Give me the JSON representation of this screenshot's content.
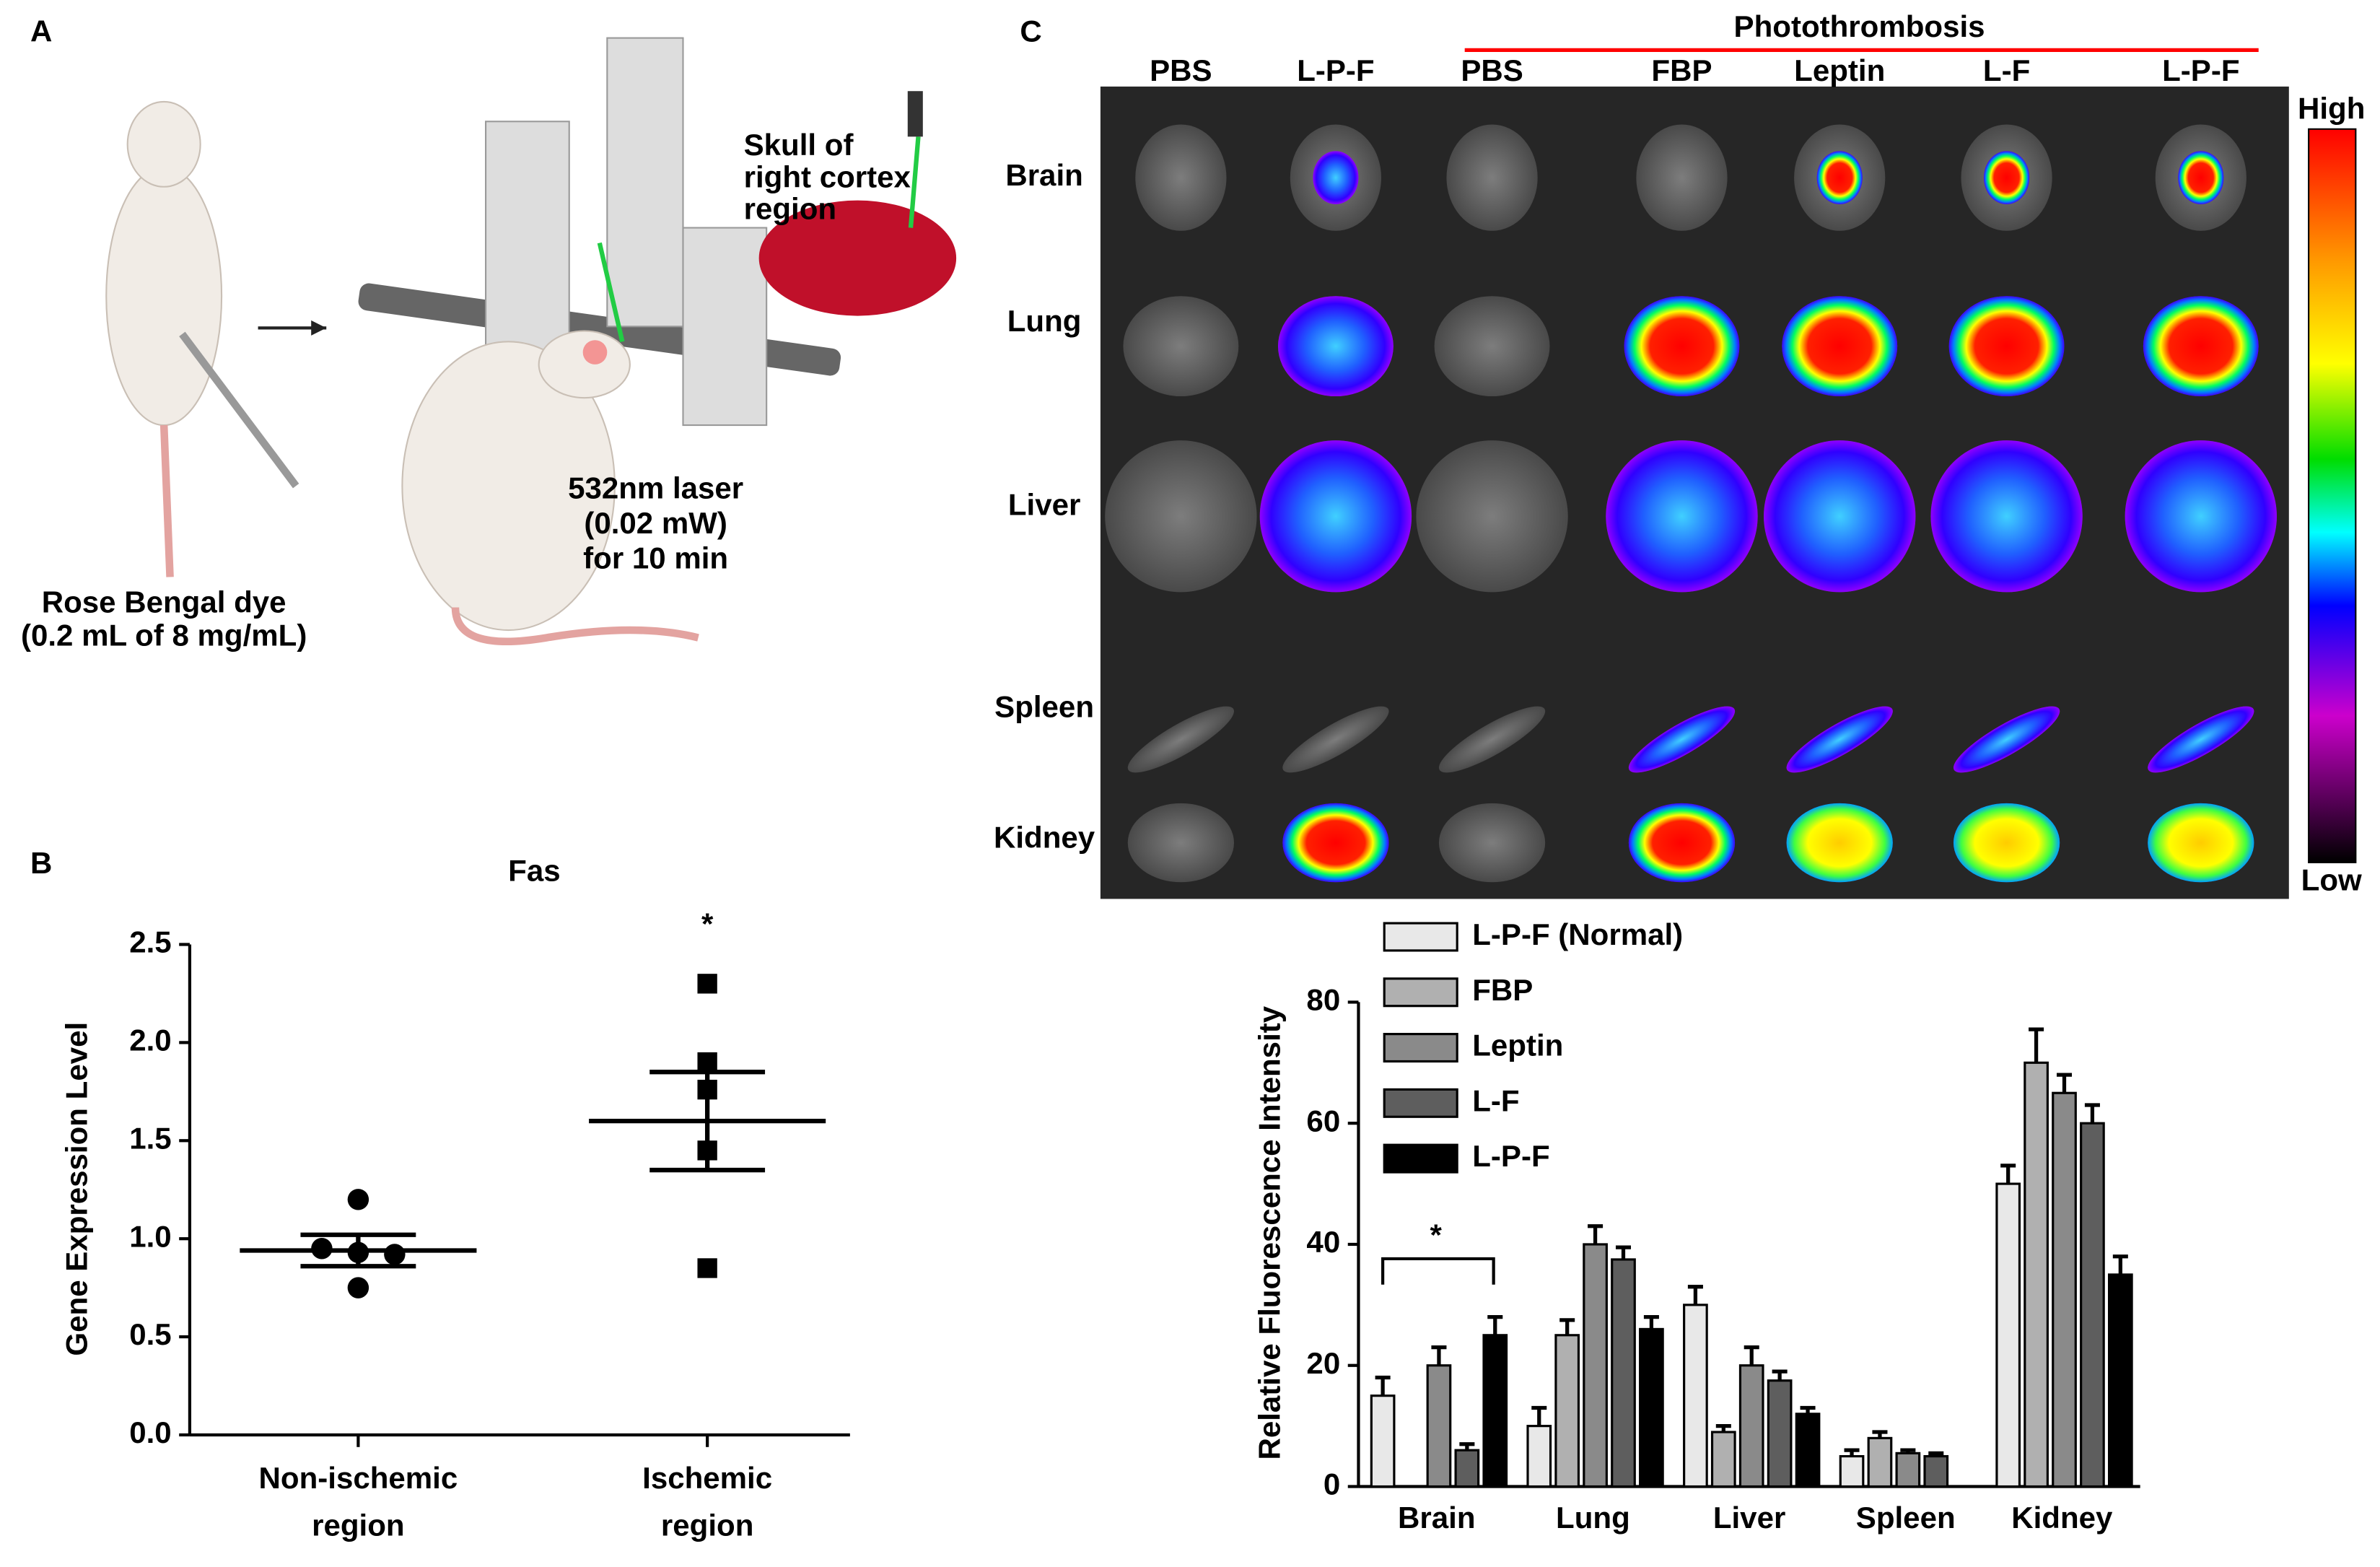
{
  "panel_labels": [
    "A",
    "B",
    "C"
  ],
  "panel_a": {
    "skull_label": [
      "Skull of",
      "right cortex",
      "region"
    ],
    "laser_label": [
      "532nm laser",
      "(0.02 mW)",
      "for 10 min"
    ],
    "dye_label": [
      "Rose Bengal dye",
      "(0.2 mL of 8 mg/mL)"
    ]
  },
  "panel_c_image": {
    "group_label": "Photothrombosis",
    "columns": [
      "PBS",
      "L-P-F",
      "PBS",
      "FBP",
      "Leptin",
      "L-F",
      "L-P-F"
    ],
    "rows": [
      "Brain",
      "Lung",
      "Liver",
      "Spleen",
      "Kidney"
    ],
    "scale_high": "High",
    "scale_low": "Low"
  },
  "chart_data": [
    {
      "type": "scatter",
      "title": "Fas",
      "y_label": "Gene Expression Level",
      "annotation": "*",
      "categories": [
        "Non-ischemic region",
        "Ischemic region"
      ],
      "groups": [
        {
          "marker": "circle",
          "color": "#000000",
          "values": [
            1.2,
            0.95,
            0.93,
            0.92,
            0.75
          ],
          "mean": 0.94,
          "sem": 0.08
        },
        {
          "marker": "square",
          "color": "#000000",
          "values": [
            2.3,
            1.9,
            1.76,
            1.45,
            0.85
          ],
          "mean": 1.6,
          "sem": 0.25
        }
      ],
      "ylim": [
        0,
        2.5
      ],
      "yticks": [
        {
          "value": 0,
          "label": "0.0"
        },
        0.5,
        {
          "value": 1,
          "label": "1.0"
        },
        1.5,
        {
          "value": 2,
          "label": "2.0"
        },
        2.5
      ]
    },
    {
      "type": "bar",
      "y_label": "Relative Fluorescence Intensity",
      "annotation": "*",
      "categories": [
        "Brain",
        "Lung",
        "Liver",
        "Spleen",
        "Kidney"
      ],
      "series": [
        {
          "name": "L-P-F (Normal)",
          "color": "#e8e8e8",
          "values": [
            15,
            10,
            30,
            5,
            50
          ],
          "errors": [
            3,
            3,
            3,
            1,
            3
          ]
        },
        {
          "name": "FBP",
          "color": "#b0b0b0",
          "values": [
            null,
            25,
            9,
            8,
            70
          ],
          "errors": [
            null,
            2.5,
            1,
            1,
            5.5
          ]
        },
        {
          "name": "Leptin",
          "color": "#8a8a8a",
          "values": [
            20,
            40,
            20,
            5.5,
            65
          ],
          "errors": [
            3,
            3,
            3,
            0.5,
            3
          ]
        },
        {
          "name": "L-F",
          "color": "#5e5e5e",
          "values": [
            6,
            37.5,
            17.5,
            5,
            60
          ],
          "errors": [
            1,
            2,
            1.5,
            0.5,
            3
          ]
        },
        {
          "name": "L-P-F",
          "color": "#000000",
          "values": [
            25,
            26,
            12,
            null,
            35
          ],
          "errors": [
            3,
            2,
            1,
            null,
            3
          ]
        }
      ],
      "ylim": [
        0,
        80
      ],
      "yticks": [
        0,
        20,
        40,
        60,
        80
      ]
    }
  ]
}
